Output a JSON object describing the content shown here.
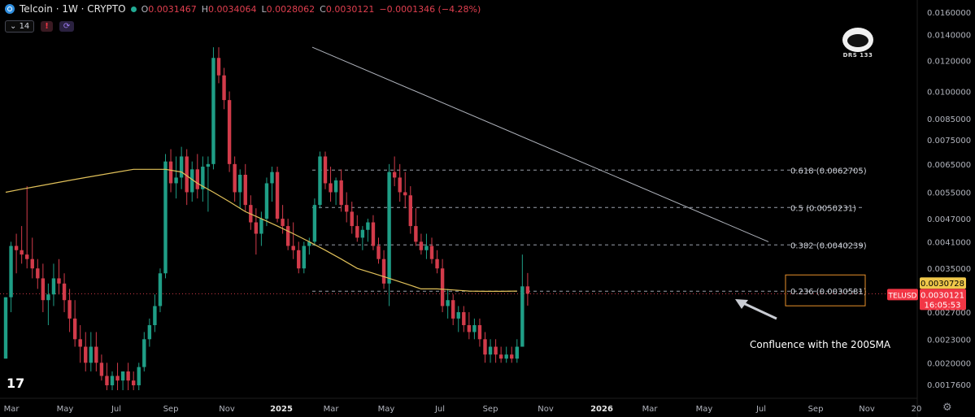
{
  "header": {
    "symbol": "Telcoin · 1W · CRYPTO",
    "ohlc": [
      {
        "k": "O",
        "v": "0.0031467"
      },
      {
        "k": "H",
        "v": "0.0034064"
      },
      {
        "k": "L",
        "v": "0.0028062"
      },
      {
        "k": "C",
        "v": "0.0030121"
      }
    ],
    "change": "−0.0001346 (−4.28%)",
    "indicator_value": "14"
  },
  "logo_text": "DRS 133",
  "colors": {
    "up": "#1f9e86",
    "down": "#d23b4a",
    "sma": "#e1c15a",
    "fib": "#9aa0ab",
    "trend": "#b0b4bd",
    "price_label": "#f23645",
    "sma_label": "#f0c84a"
  },
  "chart_data": {
    "type": "candlestick",
    "y_scale": "log",
    "y_ticks": [
      "0.0160000",
      "0.0140000",
      "0.0120000",
      "0.0100000",
      "0.0085000",
      "0.0075000",
      "0.0065000",
      "0.0055000",
      "0.0047000",
      "0.0041000",
      "0.0035000",
      "0.0027000",
      "0.0023000",
      "0.0020000",
      "0.0017600"
    ],
    "x_ticks": [
      "Mar",
      "May",
      "Jul",
      "Sep",
      "Nov",
      "2025",
      "Mar",
      "May",
      "Jul",
      "Sep",
      "Nov",
      "2026",
      "Mar",
      "May",
      "Jul",
      "Sep",
      "Nov",
      "20"
    ],
    "candles": [
      [
        0.00205,
        0.00295,
        0.00205,
        0.00295
      ],
      [
        0.00295,
        0.0041,
        0.0027,
        0.004
      ],
      [
        0.004,
        0.0043,
        0.0034,
        0.0039
      ],
      [
        0.0039,
        0.0045,
        0.0036,
        0.0038
      ],
      [
        0.0038,
        0.0057,
        0.0035,
        0.0037
      ],
      [
        0.0037,
        0.0042,
        0.0033,
        0.0035
      ],
      [
        0.0035,
        0.0037,
        0.0031,
        0.0033
      ],
      [
        0.0033,
        0.0036,
        0.0027,
        0.0029
      ],
      [
        0.0029,
        0.0032,
        0.0025,
        0.003
      ],
      [
        0.003,
        0.0036,
        0.0028,
        0.0033
      ],
      [
        0.0033,
        0.0037,
        0.003,
        0.0032
      ],
      [
        0.0032,
        0.0034,
        0.0027,
        0.0029
      ],
      [
        0.0029,
        0.0031,
        0.0024,
        0.0026
      ],
      [
        0.0026,
        0.0029,
        0.0022,
        0.0023
      ],
      [
        0.0023,
        0.0025,
        0.002,
        0.0022
      ],
      [
        0.0022,
        0.0024,
        0.0019,
        0.002
      ],
      [
        0.002,
        0.0024,
        0.0019,
        0.0022
      ],
      [
        0.0022,
        0.0024,
        0.0019,
        0.002
      ],
      [
        0.002,
        0.0021,
        0.0018,
        0.00185
      ],
      [
        0.00185,
        0.002,
        0.0017,
        0.00175
      ],
      [
        0.00175,
        0.0019,
        0.0017,
        0.00185
      ],
      [
        0.00185,
        0.002,
        0.0017,
        0.0018
      ],
      [
        0.0018,
        0.0019,
        0.0017,
        0.0019
      ],
      [
        0.0019,
        0.002,
        0.0017,
        0.0018
      ],
      [
        0.0018,
        0.0019,
        0.0017,
        0.00175
      ],
      [
        0.00175,
        0.002,
        0.0017,
        0.00195
      ],
      [
        0.00195,
        0.0024,
        0.0019,
        0.0023
      ],
      [
        0.0023,
        0.0026,
        0.0022,
        0.0025
      ],
      [
        0.0025,
        0.003,
        0.0024,
        0.0028
      ],
      [
        0.0028,
        0.0035,
        0.0027,
        0.0034
      ],
      [
        0.0034,
        0.0069,
        0.0033,
        0.0066
      ],
      [
        0.0066,
        0.0071,
        0.0055,
        0.0058
      ],
      [
        0.0058,
        0.0068,
        0.0053,
        0.006
      ],
      [
        0.006,
        0.0072,
        0.0056,
        0.0068
      ],
      [
        0.0068,
        0.0071,
        0.0051,
        0.0055
      ],
      [
        0.0055,
        0.0066,
        0.0052,
        0.0063
      ],
      [
        0.0063,
        0.0069,
        0.0053,
        0.0056
      ],
      [
        0.0056,
        0.0068,
        0.0052,
        0.0064
      ],
      [
        0.0064,
        0.0068,
        0.0049,
        0.0065
      ],
      [
        0.0065,
        0.013,
        0.0063,
        0.0122
      ],
      [
        0.0122,
        0.013,
        0.0105,
        0.011
      ],
      [
        0.011,
        0.0115,
        0.009,
        0.0095
      ],
      [
        0.0095,
        0.01,
        0.0062,
        0.0065
      ],
      [
        0.0065,
        0.0068,
        0.0052,
        0.0055
      ],
      [
        0.0055,
        0.0063,
        0.005,
        0.0061
      ],
      [
        0.0061,
        0.0065,
        0.0049,
        0.0051
      ],
      [
        0.0051,
        0.0054,
        0.0044,
        0.0046
      ],
      [
        0.0046,
        0.005,
        0.0038,
        0.0043
      ],
      [
        0.0043,
        0.0049,
        0.004,
        0.0047
      ],
      [
        0.0047,
        0.006,
        0.0045,
        0.0058
      ],
      [
        0.0058,
        0.0064,
        0.0052,
        0.0062
      ],
      [
        0.0062,
        0.0064,
        0.0046,
        0.0047
      ],
      [
        0.0047,
        0.0051,
        0.0043,
        0.0045
      ],
      [
        0.0045,
        0.0047,
        0.0039,
        0.004
      ],
      [
        0.004,
        0.0046,
        0.0037,
        0.0039
      ],
      [
        0.0039,
        0.0041,
        0.0034,
        0.0035
      ],
      [
        0.0035,
        0.0041,
        0.0034,
        0.004
      ],
      [
        0.004,
        0.0042,
        0.0038,
        0.0041
      ],
      [
        0.0041,
        0.0053,
        0.004,
        0.0051
      ],
      [
        0.0051,
        0.007,
        0.005,
        0.0068
      ],
      [
        0.0068,
        0.007,
        0.0056,
        0.0058
      ],
      [
        0.0058,
        0.0064,
        0.0052,
        0.0055
      ],
      [
        0.0055,
        0.006,
        0.0051,
        0.0059
      ],
      [
        0.0059,
        0.0063,
        0.0049,
        0.0051
      ],
      [
        0.0051,
        0.0055,
        0.0046,
        0.0049
      ],
      [
        0.0049,
        0.0052,
        0.0043,
        0.0045
      ],
      [
        0.0045,
        0.0048,
        0.0041,
        0.0042
      ],
      [
        0.0042,
        0.0045,
        0.0039,
        0.0044
      ],
      [
        0.0044,
        0.0047,
        0.0041,
        0.0046
      ],
      [
        0.0046,
        0.0048,
        0.0039,
        0.004
      ],
      [
        0.004,
        0.0042,
        0.0036,
        0.0037
      ],
      [
        0.0037,
        0.0039,
        0.0031,
        0.0032
      ],
      [
        0.0032,
        0.0065,
        0.0028,
        0.0062
      ],
      [
        0.0062,
        0.0068,
        0.0057,
        0.006
      ],
      [
        0.006,
        0.0065,
        0.0052,
        0.0055
      ],
      [
        0.0055,
        0.0062,
        0.005,
        0.0054
      ],
      [
        0.0054,
        0.0057,
        0.0043,
        0.0045
      ],
      [
        0.0045,
        0.005,
        0.004,
        0.0041
      ],
      [
        0.0041,
        0.0043,
        0.0038,
        0.0039
      ],
      [
        0.0039,
        0.0043,
        0.0037,
        0.004
      ],
      [
        0.004,
        0.0042,
        0.0036,
        0.0037
      ],
      [
        0.0037,
        0.0039,
        0.0034,
        0.0035
      ],
      [
        0.0035,
        0.0037,
        0.0027,
        0.0028
      ],
      [
        0.0028,
        0.0031,
        0.0026,
        0.0029
      ],
      [
        0.0029,
        0.003,
        0.0025,
        0.0026
      ],
      [
        0.0026,
        0.0028,
        0.0024,
        0.0027
      ],
      [
        0.0027,
        0.0028,
        0.0024,
        0.0025
      ],
      [
        0.0025,
        0.0027,
        0.0023,
        0.0024
      ],
      [
        0.0024,
        0.0026,
        0.0023,
        0.0025
      ],
      [
        0.0025,
        0.0026,
        0.0022,
        0.0023
      ],
      [
        0.0023,
        0.0024,
        0.002,
        0.0021
      ],
      [
        0.0021,
        0.0023,
        0.002,
        0.0022
      ],
      [
        0.0022,
        0.0023,
        0.002,
        0.0021
      ],
      [
        0.0021,
        0.0022,
        0.002,
        0.00205
      ],
      [
        0.00205,
        0.0022,
        0.002,
        0.0021
      ],
      [
        0.0021,
        0.0022,
        0.002,
        0.00205
      ],
      [
        0.00205,
        0.0023,
        0.002,
        0.0022
      ],
      [
        0.0022,
        0.0038,
        0.0022,
        0.0031467
      ],
      [
        0.0031467,
        0.0034064,
        0.0028062,
        0.0030121
      ]
    ],
    "sma": [
      0.0055,
      0.0056,
      0.0057,
      0.0058,
      0.0059,
      0.006,
      0.0061,
      0.0062,
      0.0063,
      0.0063,
      0.0063,
      0.0062,
      0.0058,
      0.0055,
      0.0052,
      0.0049,
      0.0047,
      0.0045,
      0.0043,
      0.0041,
      0.0039,
      0.0037,
      0.0035,
      0.0034,
      0.0033,
      0.0032,
      0.0031,
      0.0031,
      0.00308,
      0.00306,
      0.003055,
      0.003055,
      0.00306
    ],
    "sma_start_index": 0,
    "sma_step": 3,
    "fib_levels": [
      {
        "label": "0.618 (0.0062705)",
        "value": 0.0062705
      },
      {
        "label": "0.5 (0.0050231)",
        "value": 0.0050231
      },
      {
        "label": "0.382 (0.0040239)",
        "value": 0.0040239
      },
      {
        "label": "0.236 (0.0030581)",
        "value": 0.0030581
      }
    ],
    "trendline": {
      "start": 0.013,
      "end": 0.0041
    },
    "price_labels": {
      "sma_value": "0.0030728",
      "symbol": "TELUSD",
      "price": "0.0030121",
      "countdown": "16:05:53"
    },
    "annotation": "Confluence with the 200SMA"
  }
}
